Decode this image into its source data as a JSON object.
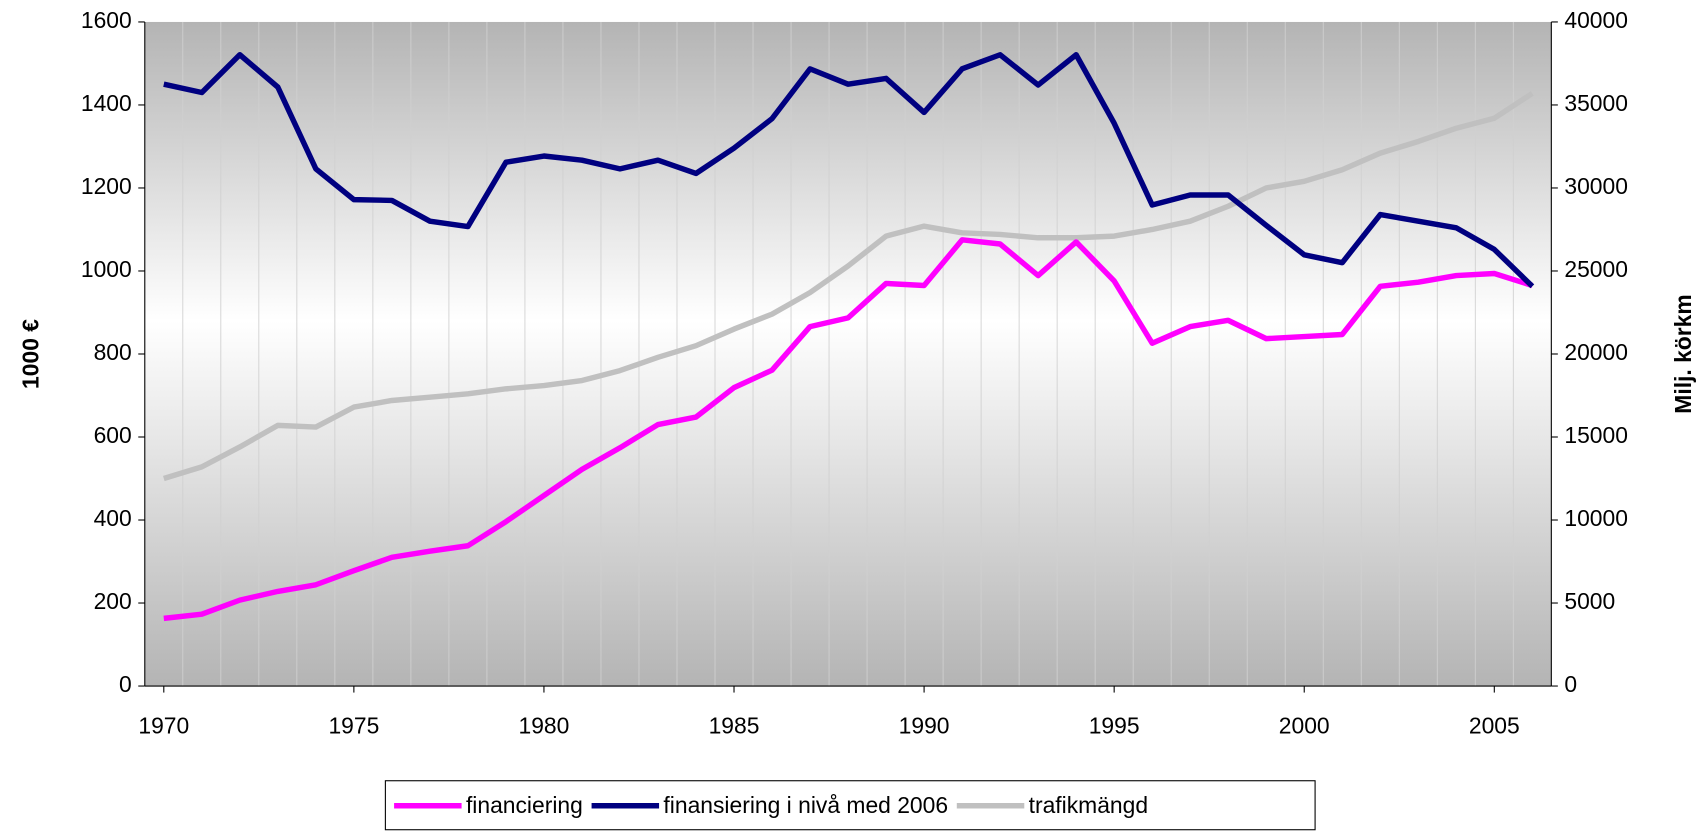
{
  "chart_data": {
    "type": "line",
    "y_label": "1000 €",
    "y2_label": "Milj. körkm",
    "x": [
      1970,
      1971,
      1972,
      1973,
      1974,
      1975,
      1976,
      1977,
      1978,
      1979,
      1980,
      1981,
      1982,
      1983,
      1984,
      1985,
      1986,
      1987,
      1988,
      1989,
      1990,
      1991,
      1992,
      1993,
      1994,
      1995,
      1996,
      1997,
      1998,
      1999,
      2000,
      2001,
      2002,
      2003,
      2004,
      2005,
      2006
    ],
    "xlim": [
      1969.5,
      2006.5
    ],
    "xticks": [
      1970,
      1975,
      1980,
      1985,
      1990,
      1995,
      2000,
      2005
    ],
    "ylim": [
      0,
      1600
    ],
    "yticks": [
      0,
      200,
      400,
      600,
      800,
      1000,
      1200,
      1400,
      1600
    ],
    "y2lim": [
      0,
      40000
    ],
    "y2ticks": [
      0,
      5000,
      10000,
      15000,
      20000,
      25000,
      30000,
      35000,
      40000
    ],
    "legend": "bottom",
    "series": [
      {
        "name": "financiering",
        "color": "#ff00ff",
        "values": [
          163,
          173,
          207,
          228,
          244,
          278,
          310,
          325,
          338,
          396,
          459,
          522,
          574,
          630,
          648,
          719,
          761,
          866,
          887,
          970,
          965,
          1075,
          1065,
          989,
          1070,
          976,
          826,
          866,
          881,
          837,
          842,
          847,
          963,
          973,
          989,
          994,
          965
        ]
      },
      {
        "name": "finansiering i nivå med 2006",
        "color": "#000080",
        "values": [
          1450,
          1430,
          1521,
          1443,
          1246,
          1172,
          1170,
          1120,
          1107,
          1262,
          1277,
          1267,
          1246,
          1267,
          1235,
          1296,
          1367,
          1487,
          1450,
          1464,
          1382,
          1487,
          1521,
          1448,
          1521,
          1356,
          1159,
          1183,
          1183,
          1110,
          1039,
          1020,
          1136,
          1120,
          1104,
          1052,
          963
        ]
      },
      {
        "name": "trafikmängd",
        "color": "#c0c0c0",
        "axis": "y2",
        "values": [
          12500,
          13200,
          14400,
          15700,
          15600,
          16800,
          17200,
          17400,
          17600,
          17900,
          18100,
          18400,
          19000,
          19800,
          20500,
          21500,
          22400,
          23700,
          25300,
          27100,
          27700,
          27300,
          27200,
          27000,
          27000,
          27100,
          27500,
          28000,
          28900,
          30000,
          30400,
          31100,
          32100,
          32800,
          33600,
          34200,
          35700
        ]
      }
    ]
  }
}
